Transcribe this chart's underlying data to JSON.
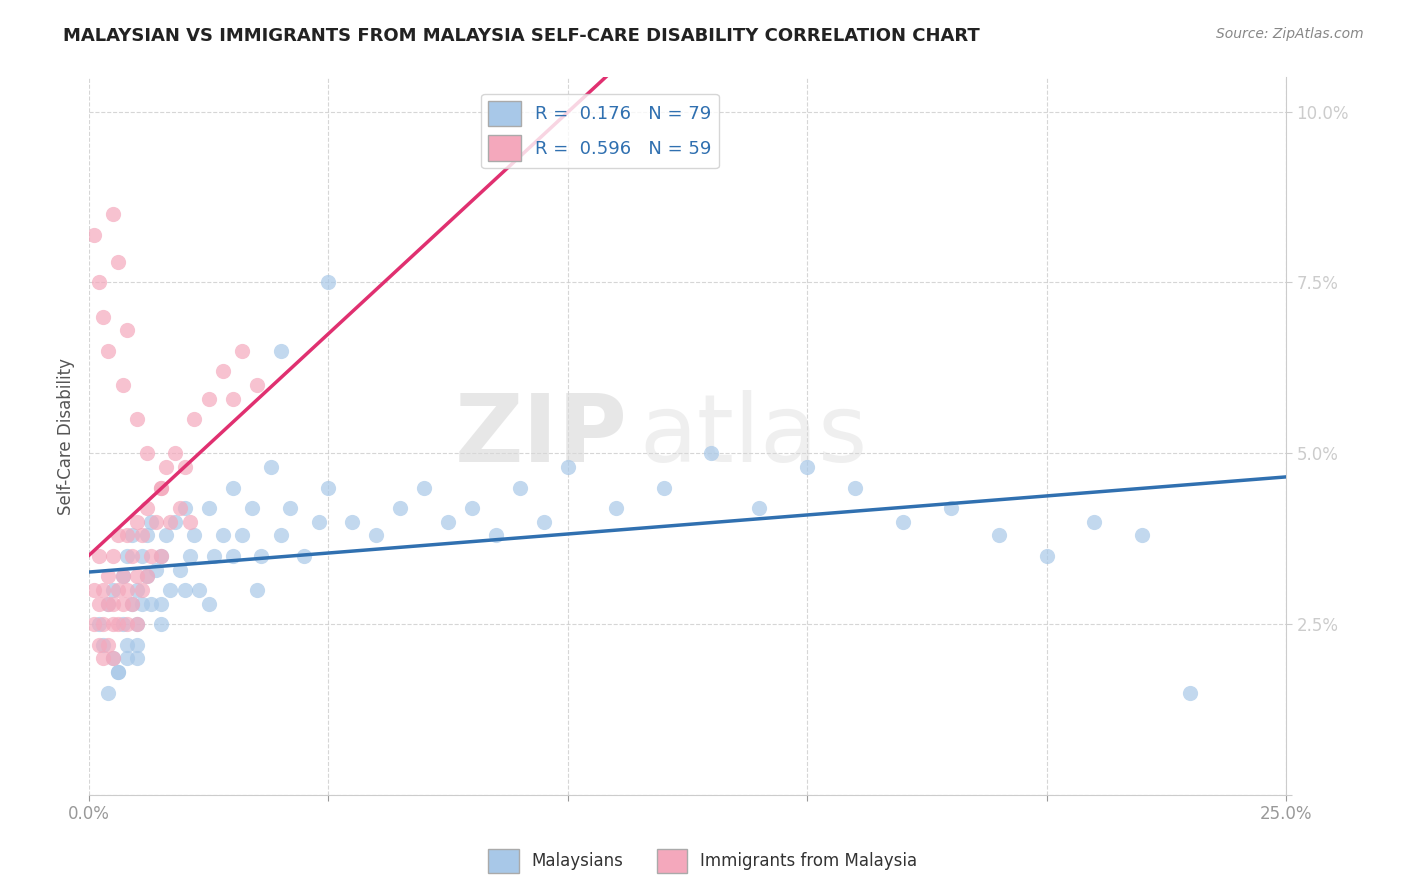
{
  "title": "MALAYSIAN VS IMMIGRANTS FROM MALAYSIA SELF-CARE DISABILITY CORRELATION CHART",
  "source": "Source: ZipAtlas.com",
  "ylabel": "Self-Care Disability",
  "xlim": [
    0.0,
    0.25
  ],
  "ylim": [
    0.0,
    0.105
  ],
  "xticks": [
    0.0,
    0.05,
    0.1,
    0.15,
    0.2,
    0.25
  ],
  "yticks": [
    0.0,
    0.025,
    0.05,
    0.075,
    0.1
  ],
  "R_blue": 0.176,
  "N_blue": 79,
  "R_pink": 0.596,
  "N_pink": 59,
  "blue_color": "#a8c8e8",
  "pink_color": "#f4a8bc",
  "blue_line_color": "#3070b0",
  "pink_line_color": "#e03070",
  "watermark_zip": "ZIP",
  "watermark_atlas": "atlas",
  "background_color": "#ffffff",
  "legend_blue_label": "Malaysians",
  "legend_pink_label": "Immigrants from Malaysia",
  "blue_scatter_x": [
    0.002,
    0.003,
    0.004,
    0.005,
    0.005,
    0.006,
    0.007,
    0.007,
    0.008,
    0.008,
    0.009,
    0.009,
    0.01,
    0.01,
    0.01,
    0.011,
    0.011,
    0.012,
    0.012,
    0.013,
    0.013,
    0.014,
    0.015,
    0.015,
    0.016,
    0.017,
    0.018,
    0.019,
    0.02,
    0.021,
    0.022,
    0.023,
    0.025,
    0.026,
    0.028,
    0.03,
    0.032,
    0.034,
    0.036,
    0.038,
    0.04,
    0.042,
    0.045,
    0.048,
    0.05,
    0.055,
    0.06,
    0.065,
    0.07,
    0.075,
    0.08,
    0.085,
    0.09,
    0.095,
    0.1,
    0.11,
    0.12,
    0.13,
    0.14,
    0.15,
    0.16,
    0.17,
    0.18,
    0.19,
    0.2,
    0.21,
    0.22,
    0.23,
    0.004,
    0.006,
    0.008,
    0.01,
    0.015,
    0.02,
    0.025,
    0.03,
    0.035,
    0.04,
    0.05
  ],
  "blue_scatter_y": [
    0.025,
    0.022,
    0.028,
    0.02,
    0.03,
    0.018,
    0.032,
    0.025,
    0.035,
    0.022,
    0.028,
    0.038,
    0.03,
    0.025,
    0.02,
    0.035,
    0.028,
    0.032,
    0.038,
    0.028,
    0.04,
    0.033,
    0.035,
    0.028,
    0.038,
    0.03,
    0.04,
    0.033,
    0.042,
    0.035,
    0.038,
    0.03,
    0.042,
    0.035,
    0.038,
    0.045,
    0.038,
    0.042,
    0.035,
    0.048,
    0.038,
    0.042,
    0.035,
    0.04,
    0.045,
    0.04,
    0.038,
    0.042,
    0.045,
    0.04,
    0.042,
    0.038,
    0.045,
    0.04,
    0.048,
    0.042,
    0.045,
    0.05,
    0.042,
    0.048,
    0.045,
    0.04,
    0.042,
    0.038,
    0.035,
    0.04,
    0.038,
    0.015,
    0.015,
    0.018,
    0.02,
    0.022,
    0.025,
    0.03,
    0.028,
    0.035,
    0.03,
    0.065,
    0.075
  ],
  "pink_scatter_x": [
    0.001,
    0.001,
    0.002,
    0.002,
    0.002,
    0.003,
    0.003,
    0.003,
    0.004,
    0.004,
    0.004,
    0.005,
    0.005,
    0.005,
    0.005,
    0.006,
    0.006,
    0.006,
    0.007,
    0.007,
    0.008,
    0.008,
    0.008,
    0.009,
    0.009,
    0.01,
    0.01,
    0.01,
    0.011,
    0.011,
    0.012,
    0.012,
    0.013,
    0.014,
    0.015,
    0.015,
    0.016,
    0.017,
    0.018,
    0.019,
    0.02,
    0.021,
    0.022,
    0.025,
    0.028,
    0.03,
    0.032,
    0.035,
    0.001,
    0.002,
    0.003,
    0.004,
    0.005,
    0.006,
    0.007,
    0.008,
    0.01,
    0.012,
    0.015
  ],
  "pink_scatter_y": [
    0.03,
    0.025,
    0.028,
    0.035,
    0.022,
    0.03,
    0.025,
    0.02,
    0.032,
    0.028,
    0.022,
    0.035,
    0.028,
    0.025,
    0.02,
    0.038,
    0.03,
    0.025,
    0.032,
    0.028,
    0.038,
    0.03,
    0.025,
    0.035,
    0.028,
    0.04,
    0.032,
    0.025,
    0.038,
    0.03,
    0.042,
    0.032,
    0.035,
    0.04,
    0.045,
    0.035,
    0.048,
    0.04,
    0.05,
    0.042,
    0.048,
    0.04,
    0.055,
    0.058,
    0.062,
    0.058,
    0.065,
    0.06,
    0.082,
    0.075,
    0.07,
    0.065,
    0.085,
    0.078,
    0.06,
    0.068,
    0.055,
    0.05,
    0.045
  ]
}
